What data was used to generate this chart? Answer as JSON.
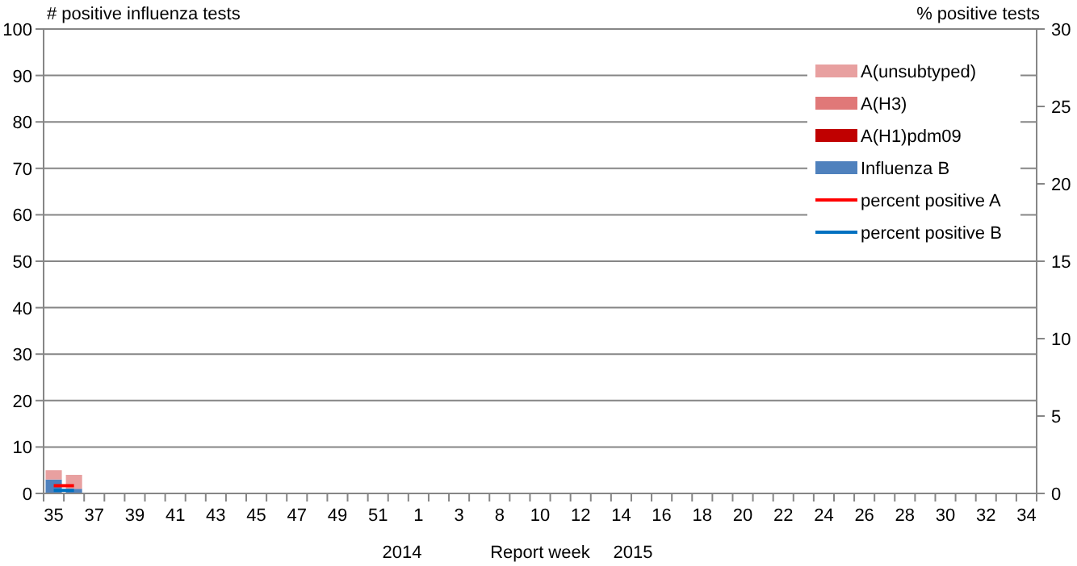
{
  "chart_data": {
    "type": "bar",
    "stacked": true,
    "xlabel": "Report week",
    "ylabel": "# positive influenza tests",
    "y2label": "% positive tests",
    "categories": [
      "35",
      null,
      "37",
      null,
      "39",
      null,
      "41",
      null,
      "43",
      null,
      "45",
      null,
      "47",
      null,
      "49",
      null,
      "51",
      null,
      "1",
      null,
      "3",
      null,
      "8",
      null,
      "10",
      null,
      "12",
      null,
      "14",
      null,
      "16",
      null,
      "18",
      null,
      "20",
      null,
      "22",
      null,
      "24",
      null,
      "26",
      null,
      "28",
      null,
      "30",
      null,
      "32",
      null,
      "34"
    ],
    "ylim": [
      0,
      100
    ],
    "yticks": [
      0,
      10,
      20,
      30,
      40,
      50,
      60,
      70,
      80,
      90,
      100
    ],
    "y2lim": [
      0,
      30
    ],
    "y2ticks": [
      0,
      5,
      10,
      15,
      20,
      25,
      30
    ],
    "grid": "y",
    "legend": "top right",
    "annotations": [
      "2014",
      "2015"
    ],
    "series": [
      {
        "name": "Influenza B",
        "color": "#4f81bd",
        "values": [
          3,
          1,
          null,
          null,
          null,
          null,
          null,
          null,
          null,
          null,
          null,
          null,
          null,
          null,
          null,
          null,
          null,
          null,
          null,
          null,
          null,
          null,
          null,
          null,
          null,
          null,
          null,
          null,
          null,
          null,
          null,
          null,
          null,
          null,
          null,
          null,
          null,
          null,
          null,
          null,
          null,
          null,
          null,
          null,
          null,
          null,
          null,
          null,
          null
        ]
      },
      {
        "name": "A(H1)pdm09",
        "color": "#c00000",
        "values": [
          0,
          0,
          null,
          null,
          null,
          null,
          null,
          null,
          null,
          null,
          null,
          null,
          null,
          null,
          null,
          null,
          null,
          null,
          null,
          null,
          null,
          null,
          null,
          null,
          null,
          null,
          null,
          null,
          null,
          null,
          null,
          null,
          null,
          null,
          null,
          null,
          null,
          null,
          null,
          null,
          null,
          null,
          null,
          null,
          null,
          null,
          null,
          null,
          null
        ]
      },
      {
        "name": "A(H3)",
        "color": "#e07878",
        "values": [
          0,
          0,
          null,
          null,
          null,
          null,
          null,
          null,
          null,
          null,
          null,
          null,
          null,
          null,
          null,
          null,
          null,
          null,
          null,
          null,
          null,
          null,
          null,
          null,
          null,
          null,
          null,
          null,
          null,
          null,
          null,
          null,
          null,
          null,
          null,
          null,
          null,
          null,
          null,
          null,
          null,
          null,
          null,
          null,
          null,
          null,
          null,
          null,
          null
        ]
      },
      {
        "name": "A(unsubtyped)",
        "color": "#e8a0a0",
        "values": [
          2,
          3,
          null,
          null,
          null,
          null,
          null,
          null,
          null,
          null,
          null,
          null,
          null,
          null,
          null,
          null,
          null,
          null,
          null,
          null,
          null,
          null,
          null,
          null,
          null,
          null,
          null,
          null,
          null,
          null,
          null,
          null,
          null,
          null,
          null,
          null,
          null,
          null,
          null,
          null,
          null,
          null,
          null,
          null,
          null,
          null,
          null,
          null,
          null
        ]
      },
      {
        "name": "percent positive A",
        "type": "line",
        "axis": "y2",
        "color": "#ff0000",
        "values": [
          0.5,
          0.5,
          null,
          null,
          null,
          null,
          null,
          null,
          null,
          null,
          null,
          null,
          null,
          null,
          null,
          null,
          null,
          null,
          null,
          null,
          null,
          null,
          null,
          null,
          null,
          null,
          null,
          null,
          null,
          null,
          null,
          null,
          null,
          null,
          null,
          null,
          null,
          null,
          null,
          null,
          null,
          null,
          null,
          null,
          null,
          null,
          null,
          null,
          null
        ]
      },
      {
        "name": "percent positive B",
        "type": "line",
        "axis": "y2",
        "color": "#0070c0",
        "values": [
          0.2,
          0.2,
          null,
          null,
          null,
          null,
          null,
          null,
          null,
          null,
          null,
          null,
          null,
          null,
          null,
          null,
          null,
          null,
          null,
          null,
          null,
          null,
          null,
          null,
          null,
          null,
          null,
          null,
          null,
          null,
          null,
          null,
          null,
          null,
          null,
          null,
          null,
          null,
          null,
          null,
          null,
          null,
          null,
          null,
          null,
          null,
          null,
          null,
          null
        ]
      }
    ]
  }
}
